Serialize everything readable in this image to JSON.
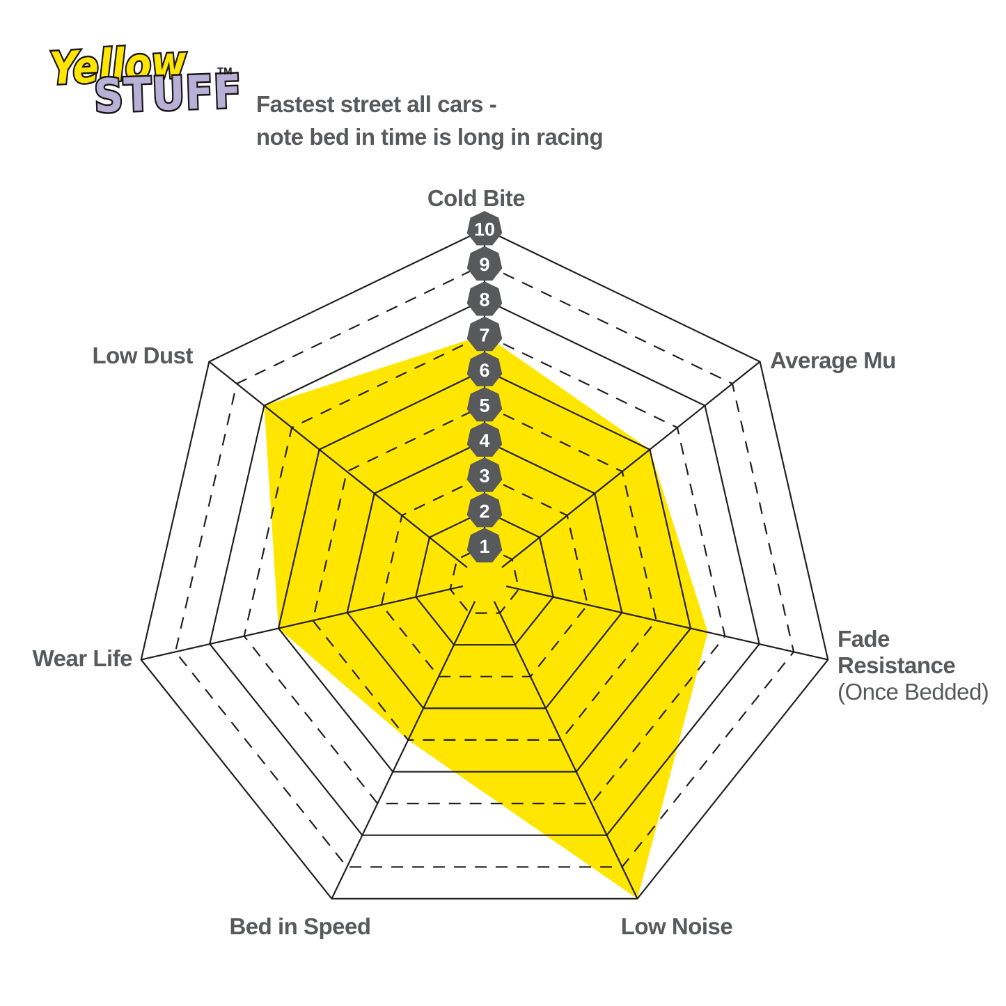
{
  "logo": {
    "word1": "Yellow",
    "word2": "STUFF",
    "trademark": "TM"
  },
  "subtitle": {
    "line1": "Fastest street all cars -",
    "line2": "note bed in time is long in racing"
  },
  "chart_data": {
    "type": "radar",
    "categories": [
      "Cold Bite",
      "Average Mu",
      "Fade Resistance (Once Bedded)",
      "Low Noise",
      "Bed in Speed",
      "Wear Life",
      "Low Dust"
    ],
    "series": [
      {
        "name": "Yellowstuff",
        "values": [
          7,
          6,
          6.5,
          10,
          5,
          6,
          8
        ]
      }
    ],
    "axes": [
      {
        "label": "Cold Bite"
      },
      {
        "label": "Average Mu"
      },
      {
        "label": "Fade Resistance",
        "lines": [
          "Fade",
          "Resistance"
        ],
        "note": "(Once Bedded)"
      },
      {
        "label": "Low Noise"
      },
      {
        "label": "Bed in Speed"
      },
      {
        "label": "Wear Life"
      },
      {
        "label": "Low Dust"
      }
    ],
    "scale": {
      "min": 0,
      "max": 10,
      "tick_labels": [
        1,
        2,
        3,
        4,
        5,
        6,
        7,
        8,
        9,
        10
      ]
    },
    "layout_hints": {
      "grid": "heptagonal web, 10 rings; even rings solid, odd rings dashed; scale badges along top axis",
      "legend_position": "none"
    },
    "colors": {
      "series_fill": "#ffe600",
      "grid_line": "#231f20",
      "badge": "#58595b",
      "label_text": "#58595b",
      "logo_yellow": "#ffe600",
      "logo_purple": "#b7b1d8"
    }
  }
}
